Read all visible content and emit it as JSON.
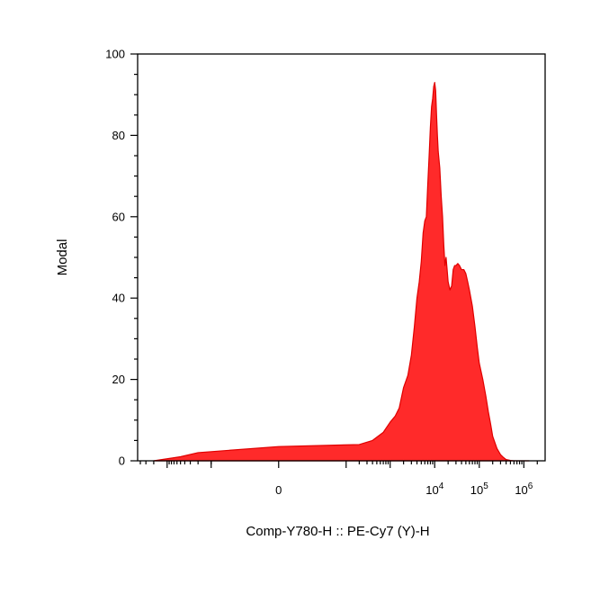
{
  "chart_data": {
    "type": "area",
    "title": "",
    "xlabel": "Comp-Y780-H :: PE-Cy7 (Y)-H",
    "ylabel": "Modal",
    "ylim": [
      0,
      100
    ],
    "x_scale": "biexponential",
    "y_ticks": [
      "0",
      "20",
      "40",
      "60",
      "80",
      "100"
    ],
    "x_ticks": [
      {
        "label": "0",
        "value": 0
      },
      {
        "base": "10",
        "exp": "4",
        "value": 10000
      },
      {
        "base": "10",
        "exp": "5",
        "value": 100000
      },
      {
        "base": "10",
        "exp": "6",
        "value": 1000000
      }
    ],
    "fill_color": "#ff2a2a",
    "line_color": "#e00000",
    "series": [
      {
        "x": [
          -2000,
          -1000,
          -500,
          -200,
          0,
          200,
          400,
          700,
          1000,
          1300,
          1600,
          2000,
          2500,
          3000,
          3500,
          4000,
          4500,
          5000,
          5500,
          6000,
          6500,
          7000,
          7500,
          8000,
          8500,
          9000,
          9500,
          10000,
          10500,
          11000,
          11500,
          12000,
          13000,
          14000,
          15000,
          16000,
          17000,
          18000,
          19000,
          20000,
          22000,
          24000,
          26000,
          28000,
          30000,
          33000,
          36000,
          40000,
          45000,
          50000,
          55000,
          60000,
          70000,
          80000,
          90000,
          100000,
          120000,
          140000,
          160000,
          180000,
          200000,
          250000,
          300000,
          350000,
          400000,
          500000,
          600000,
          800000,
          1000000,
          1300000
        ],
        "y": [
          0,
          0.5,
          1,
          2,
          3.5,
          4,
          5,
          7,
          9.5,
          11,
          13,
          18,
          21,
          26,
          33,
          40,
          44,
          49,
          56,
          59,
          60,
          68,
          75,
          82,
          87,
          89,
          92,
          93,
          91,
          85,
          80,
          76,
          72,
          65,
          60,
          53,
          48,
          50,
          47,
          44,
          42,
          43,
          47,
          48,
          48,
          48.5,
          48,
          47,
          47,
          46,
          44,
          42,
          38,
          33,
          28,
          24,
          20,
          16,
          12,
          9,
          6,
          3,
          1.5,
          0.8,
          0.3,
          0.1,
          0,
          0,
          0,
          0
        ]
      }
    ]
  }
}
